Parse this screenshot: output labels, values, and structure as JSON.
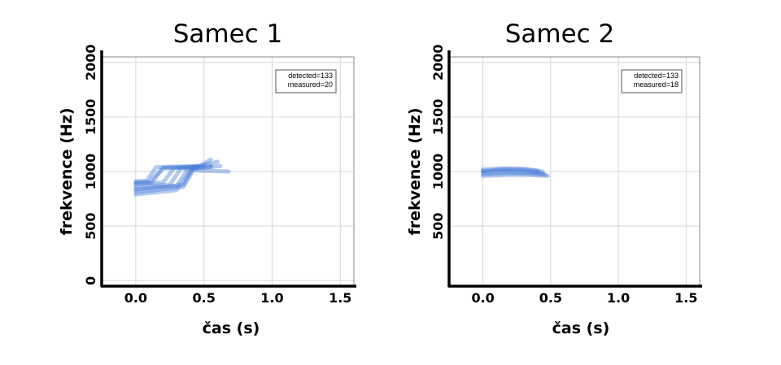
{
  "chart_data": [
    {
      "type": "line",
      "title": "Samec 1",
      "xlabel": "čas (s)",
      "ylabel": "frekvence (Hz)",
      "xlim": [
        -0.25,
        1.6
      ],
      "ylim": [
        -50,
        2050
      ],
      "xticks": [
        0.0,
        0.5,
        1.0,
        1.5
      ],
      "xtick_labels": [
        "0.0",
        "0.5",
        "1.0",
        "1.5"
      ],
      "yticks": [
        0,
        500,
        1000,
        1500,
        2000
      ],
      "ytick_labels": [
        "0",
        "500",
        "1000",
        "1500",
        "2000"
      ],
      "grid": true,
      "legend": {
        "position": "top-right",
        "lines": [
          "detected=133",
          "measured=20"
        ]
      },
      "color": "#4a7fd8",
      "series": [
        {
          "x": [
            0.0,
            0.08,
            0.15,
            0.45
          ],
          "y": [
            910,
            915,
            1040,
            1050
          ]
        },
        {
          "x": [
            0.0,
            0.1,
            0.2,
            0.45
          ],
          "y": [
            900,
            905,
            1035,
            1045
          ]
        },
        {
          "x": [
            0.0,
            0.12,
            0.2,
            0.5
          ],
          "y": [
            895,
            900,
            1030,
            1045
          ]
        },
        {
          "x": [
            0.0,
            0.2,
            0.28,
            0.55
          ],
          "y": [
            880,
            900,
            1030,
            1055
          ]
        },
        {
          "x": [
            0.0,
            0.25,
            0.33,
            0.55
          ],
          "y": [
            860,
            880,
            1025,
            1040
          ]
        },
        {
          "x": [
            0.0,
            0.3,
            0.38,
            0.62
          ],
          "y": [
            840,
            870,
            1020,
            1050
          ]
        },
        {
          "x": [
            0.0,
            0.35,
            0.42,
            0.68
          ],
          "y": [
            810,
            860,
            1010,
            1000
          ]
        },
        {
          "x": [
            0.0,
            0.35,
            0.42,
            0.6
          ],
          "y": [
            830,
            880,
            1040,
            1090
          ]
        },
        {
          "x": [
            0.0,
            0.3,
            0.4,
            0.55
          ],
          "y": [
            790,
            830,
            1000,
            1110
          ]
        }
      ]
    },
    {
      "type": "line",
      "title": "Samec 2",
      "xlabel": "čas (s)",
      "ylabel": "frekvence (Hz)",
      "xlim": [
        -0.25,
        1.6
      ],
      "ylim": [
        -50,
        2050
      ],
      "xticks": [
        0.0,
        0.5,
        1.0,
        1.5
      ],
      "xtick_labels": [
        "0.0",
        "0.5",
        "1.0",
        "1.5"
      ],
      "yticks": [
        500,
        1000,
        1500,
        2000
      ],
      "ytick_labels": [
        "500",
        "1000",
        "1500",
        "2000"
      ],
      "grid": true,
      "legend": {
        "position": "top-right",
        "lines": [
          "detected=133",
          "measured=18"
        ]
      },
      "color": "#4a7fd8",
      "series": [
        {
          "x": [
            0.0,
            0.15,
            0.3,
            0.4
          ],
          "y": [
            1020,
            1030,
            1025,
            1010
          ]
        },
        {
          "x": [
            0.0,
            0.15,
            0.3,
            0.42
          ],
          "y": [
            1005,
            1015,
            1010,
            995
          ]
        },
        {
          "x": [
            0.0,
            0.15,
            0.3,
            0.45
          ],
          "y": [
            990,
            1000,
            995,
            980
          ]
        },
        {
          "x": [
            0.0,
            0.2,
            0.35,
            0.46
          ],
          "y": [
            975,
            985,
            980,
            970
          ]
        },
        {
          "x": [
            0.0,
            0.2,
            0.35,
            0.48
          ],
          "y": [
            960,
            970,
            968,
            960
          ]
        },
        {
          "x": [
            0.0,
            0.15,
            0.3,
            0.44
          ],
          "y": [
            1000,
            1020,
            1020,
            1000
          ]
        }
      ]
    }
  ]
}
